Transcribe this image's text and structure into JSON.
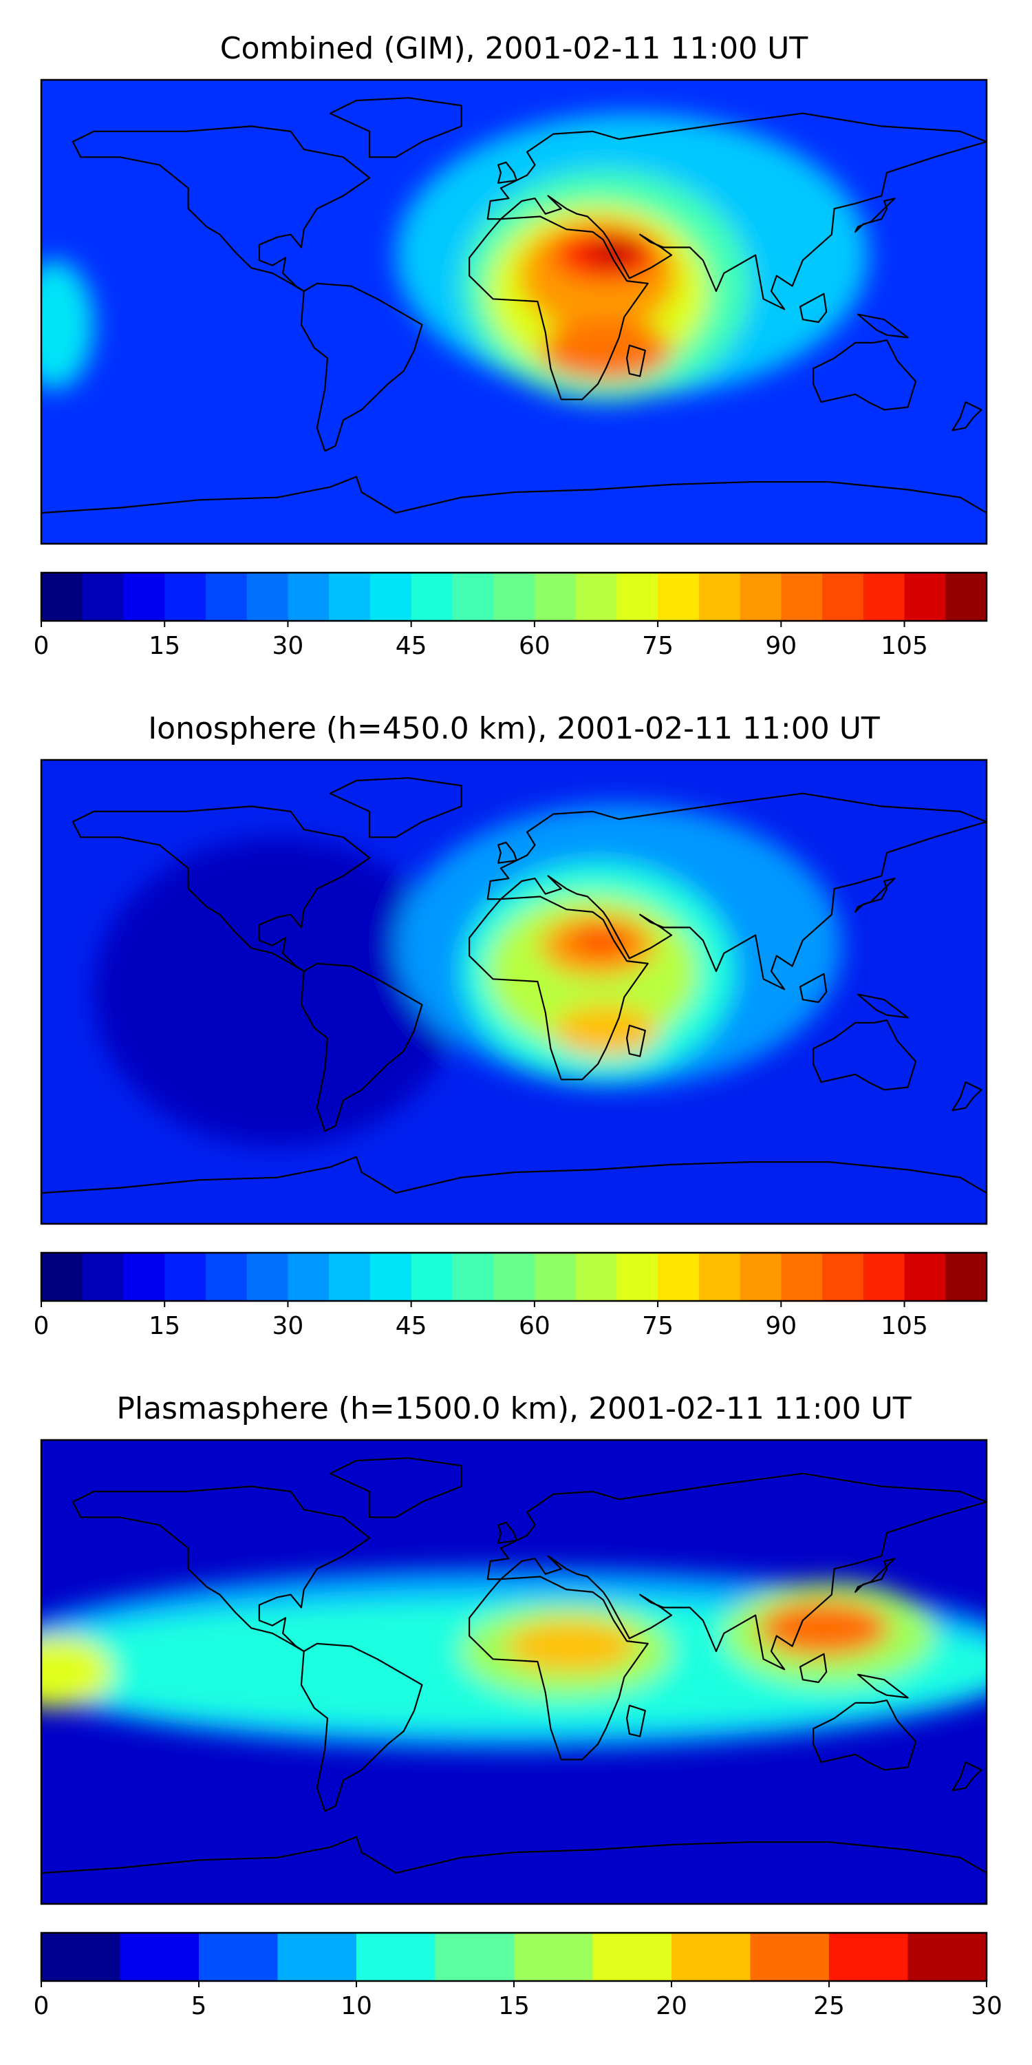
{
  "chart_data": [
    {
      "type": "heatmap",
      "title": "Combined (GIM), 2001-02-11 11:00 UT",
      "colorbar": {
        "min": 0,
        "max": 115,
        "levels": 23,
        "ticks": [
          0,
          15,
          30,
          45,
          60,
          75,
          90,
          105
        ],
        "colors": [
          "#00007f",
          "#0000b8",
          "#0000f1",
          "#0020ff",
          "#0048ff",
          "#0070ff",
          "#0098ff",
          "#00c0ff",
          "#00e4f8",
          "#1cffdb",
          "#43ffb4",
          "#69ff8d",
          "#90ff66",
          "#b7ff40",
          "#ddff19",
          "#ffe600",
          "#ffbf00",
          "#ff9800",
          "#ff7200",
          "#ff4b00",
          "#ff2400",
          "#d60000",
          "#940000"
        ]
      },
      "background_color": "#0030ff",
      "blobs": [
        {
          "lon": 45,
          "lat": 22,
          "rx": 90,
          "ry": 55,
          "color": "#00c8ff"
        },
        {
          "lon": 35,
          "lat": 10,
          "rx": 55,
          "ry": 45,
          "color": "#43ffb4"
        },
        {
          "lon": 32,
          "lat": 8,
          "rx": 42,
          "ry": 34,
          "color": "#ddff19"
        },
        {
          "lon": 32,
          "lat": 14,
          "rx": 30,
          "ry": 22,
          "color": "#ff9800"
        },
        {
          "lon": 35,
          "lat": 22,
          "rx": 20,
          "ry": 10,
          "color": "#ff2400"
        },
        {
          "lon": 38,
          "lat": 23,
          "rx": 10,
          "ry": 5,
          "color": "#b80000"
        },
        {
          "lon": 35,
          "lat": -15,
          "rx": 25,
          "ry": 12,
          "color": "#ff7200"
        },
        {
          "lon": -175,
          "lat": -5,
          "rx": 15,
          "ry": 25,
          "color": "#00e4f8"
        }
      ]
    },
    {
      "type": "heatmap",
      "title": "Ionosphere  (h=450.0 km), 2001-02-11 11:00 UT",
      "colorbar": {
        "min": 0,
        "max": 115,
        "levels": 23,
        "ticks": [
          0,
          15,
          30,
          45,
          60,
          75,
          90,
          105
        ],
        "colors": [
          "#00007f",
          "#0000b8",
          "#0000f1",
          "#0020ff",
          "#0048ff",
          "#0070ff",
          "#0098ff",
          "#00c0ff",
          "#00e4f8",
          "#1cffdb",
          "#43ffb4",
          "#69ff8d",
          "#90ff66",
          "#b7ff40",
          "#ddff19",
          "#ffe600",
          "#ffbf00",
          "#ff9800",
          "#ff7200",
          "#ff4b00",
          "#ff2400",
          "#d60000",
          "#940000"
        ]
      },
      "background_color": "#0020f0",
      "blobs": [
        {
          "lon": -90,
          "lat": 0,
          "rx": 70,
          "ry": 60,
          "color": "#0000c0"
        },
        {
          "lon": 40,
          "lat": 18,
          "rx": 85,
          "ry": 55,
          "color": "#0098ff"
        },
        {
          "lon": 32,
          "lat": 8,
          "rx": 52,
          "ry": 42,
          "color": "#1cffdb"
        },
        {
          "lon": 30,
          "lat": 8,
          "rx": 40,
          "ry": 30,
          "color": "#b7ff40"
        },
        {
          "lon": 32,
          "lat": 18,
          "rx": 22,
          "ry": 12,
          "color": "#ff9800"
        },
        {
          "lon": 33,
          "lat": 20,
          "rx": 12,
          "ry": 6,
          "color": "#ff4b00"
        },
        {
          "lon": 35,
          "lat": -15,
          "rx": 20,
          "ry": 10,
          "color": "#ffbf00"
        }
      ]
    },
    {
      "type": "heatmap",
      "title": "Plasmasphere (h=1500.0 km), 2001-02-11 11:00 UT",
      "colorbar": {
        "min": 0,
        "max": 30,
        "levels": 12,
        "ticks": [
          0,
          5,
          10,
          15,
          20,
          25,
          30
        ],
        "colors": [
          "#00008f",
          "#0000f1",
          "#0050ff",
          "#00acff",
          "#1cffe0",
          "#5cffa0",
          "#9cff5c",
          "#e0ff1c",
          "#ffc000",
          "#ff6c00",
          "#ff1800",
          "#b00000"
        ]
      },
      "background_color": "#0000c8",
      "blobs": [
        {
          "lon": 0,
          "lat": 5,
          "rx": 200,
          "ry": 35,
          "color": "#00acff"
        },
        {
          "lon": 0,
          "lat": 3,
          "rx": 190,
          "ry": 25,
          "color": "#1cffe0"
        },
        {
          "lon": 20,
          "lat": 8,
          "rx": 40,
          "ry": 18,
          "color": "#9cff5c"
        },
        {
          "lon": 22,
          "lat": 10,
          "rx": 25,
          "ry": 10,
          "color": "#ffc000"
        },
        {
          "lon": 120,
          "lat": 15,
          "rx": 40,
          "ry": 20,
          "color": "#9cff5c"
        },
        {
          "lon": 118,
          "lat": 17,
          "rx": 25,
          "ry": 11,
          "color": "#ff6c00"
        },
        {
          "lon": -175,
          "lat": 0,
          "rx": 22,
          "ry": 14,
          "color": "#e0ff1c"
        }
      ]
    }
  ]
}
